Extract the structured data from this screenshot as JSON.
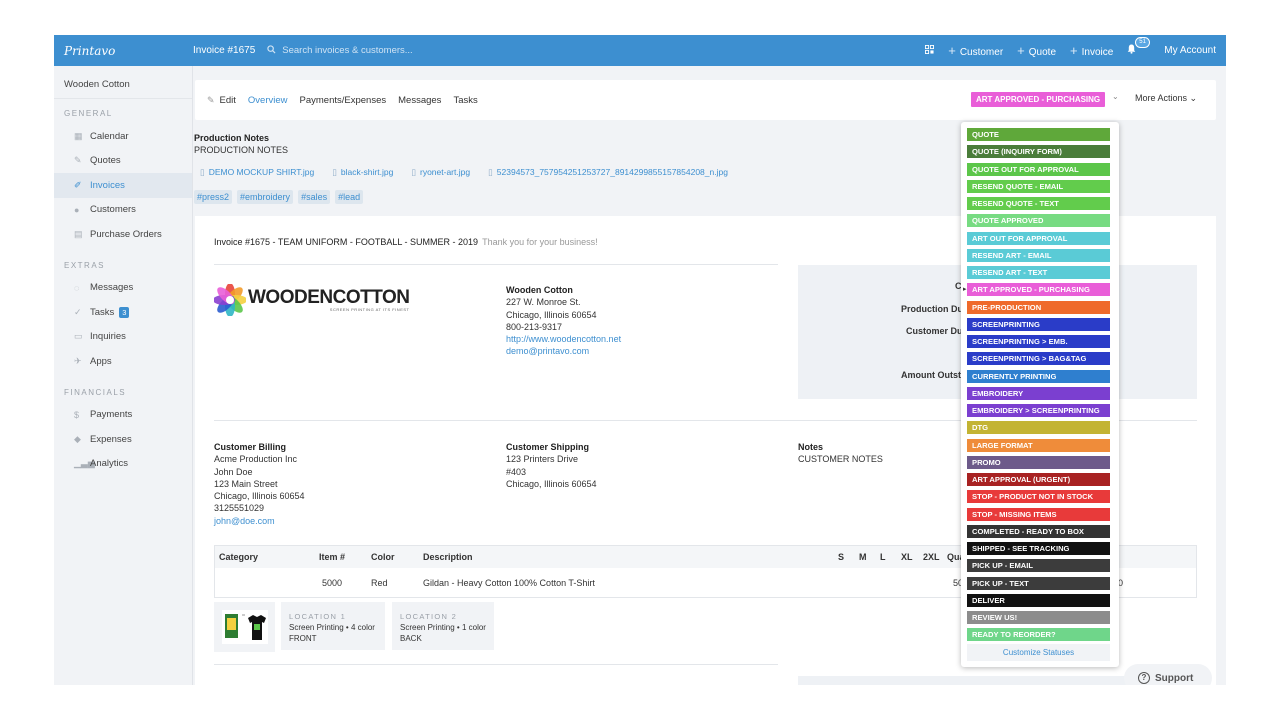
{
  "topbar": {
    "logo": "Printavo",
    "invoice_title": "Invoice #1675",
    "search_placeholder": "Search invoices & customers...",
    "customer_label": "Customer",
    "quote_label": "Quote",
    "invoice_label": "Invoice",
    "notification_count": "51",
    "account_label": "My Account"
  },
  "sidebar": {
    "company": "Wooden Cotton",
    "sections": [
      {
        "title": "GENERAL",
        "items": [
          {
            "label": "Calendar",
            "icon": "calendar-icon"
          },
          {
            "label": "Quotes",
            "icon": "pencil-icon"
          },
          {
            "label": "Invoices",
            "icon": "edit-icon",
            "active": true
          },
          {
            "label": "Customers",
            "icon": "person-icon"
          },
          {
            "label": "Purchase Orders",
            "icon": "document-icon"
          }
        ]
      },
      {
        "title": "EXTRAS",
        "items": [
          {
            "label": "Messages",
            "icon": "chat-icon"
          },
          {
            "label": "Tasks",
            "icon": "check-icon",
            "badge": "3"
          },
          {
            "label": "Inquiries",
            "icon": "inbox-icon"
          },
          {
            "label": "Apps",
            "icon": "rocket-icon"
          }
        ]
      },
      {
        "title": "FINANCIALS",
        "items": [
          {
            "label": "Payments",
            "icon": "dollar-icon"
          },
          {
            "label": "Expenses",
            "icon": "tag-icon"
          },
          {
            "label": "Analytics",
            "icon": "bar-chart-icon"
          }
        ]
      }
    ]
  },
  "tabs": {
    "edit": "Edit",
    "overview": "Overview",
    "payments": "Payments/Expenses",
    "messages": "Messages",
    "tasks": "Tasks",
    "status": "ART APPROVED - PURCHASING",
    "more_actions": "More Actions"
  },
  "production": {
    "title": "Production Notes",
    "text": "PRODUCTION NOTES",
    "files": [
      "DEMO MOCKUP SHIRT.jpg",
      "black-shirt.jpg",
      "ryonet-art.jpg",
      "52394573_757954251253727_8914299855157854208_n.jpg"
    ],
    "tags": [
      "#press2",
      "#embroidery",
      "#sales",
      "#lead"
    ]
  },
  "invoice": {
    "heading": "Invoice #1675 - TEAM UNIFORM - FOOTBALL - SUMMER - 2019",
    "thanks": "Thank you for your business!",
    "logo_name": "WOODENCOTTON",
    "logo_tagline": "SCREEN PRINTING AT ITS FINEST",
    "company": {
      "name": "Wooden Cotton",
      "street": "227 W. Monroe St.",
      "city": "Chicago, Illinois 60654",
      "phone": "800-213-9317",
      "website": "http://www.woodencotton.net",
      "email": "demo@printavo.com"
    },
    "summary_labels": {
      "c": "C",
      "production_due": "Production Du",
      "customer_due": "Customer Du",
      "amount_outstanding": "Amount Outsta"
    },
    "billing": {
      "title": "Customer Billing",
      "company": "Acme Production Inc",
      "name": "John Doe",
      "street": "123 Main Street",
      "city": "Chicago, Illinois 60654",
      "phone": "3125551029",
      "email": "john@doe.com"
    },
    "shipping": {
      "title": "Customer Shipping",
      "street": "123 Printers Drive",
      "unit": "#403",
      "city": "Chicago, Illinois 60654"
    },
    "notes": {
      "title": "Notes",
      "text": "CUSTOMER NOTES"
    },
    "table": {
      "headers": {
        "category": "Category",
        "item": "Item #",
        "color": "Color",
        "description": "Description",
        "s": "S",
        "m": "M",
        "l": "L",
        "xl": "XL",
        "xxl": "2XL",
        "qty": "Qua"
      },
      "row": {
        "category": "",
        "item": "5000",
        "color": "Red",
        "description": "Gildan - Heavy Cotton 100% Cotton T-Shirt",
        "qty": "50",
        "total": "50"
      }
    },
    "locations": [
      {
        "title": "LOCATION 1",
        "detail": "Screen Printing • 4 color",
        "side": "FRONT"
      },
      {
        "title": "LOCATION 2",
        "detail": "Screen Printing • 1 color",
        "side": "BACK"
      }
    ]
  },
  "status_dropdown": {
    "items": [
      {
        "label": "QUOTE",
        "color": "#5fa83a"
      },
      {
        "label": "QUOTE (INQUIRY FORM)",
        "color": "#4a7d3a"
      },
      {
        "label": "QUOTE OUT FOR APPROVAL",
        "color": "#5cc64a"
      },
      {
        "label": "RESEND QUOTE - EMAIL",
        "color": "#62cc4c"
      },
      {
        "label": "RESEND QUOTE - TEXT",
        "color": "#62cc4c"
      },
      {
        "label": "QUOTE APPROVED",
        "color": "#77db82"
      },
      {
        "label": "ART OUT FOR APPROVAL",
        "color": "#5acbd6"
      },
      {
        "label": "RESEND ART - EMAIL",
        "color": "#5acbd6"
      },
      {
        "label": "RESEND ART - TEXT",
        "color": "#5acbd6"
      },
      {
        "label": "ART APPROVED - PURCHASING",
        "color": "#e95ed8",
        "selected": true
      },
      {
        "label": "PRE-PRODUCTION",
        "color": "#ef6a2b"
      },
      {
        "label": "SCREENPRINTING",
        "color": "#2a3cc8"
      },
      {
        "label": "SCREENPRINTING > EMB.",
        "color": "#2a3cc8"
      },
      {
        "label": "SCREENPRINTING > BAG&TAG",
        "color": "#2a3cc8"
      },
      {
        "label": "CURRENTLY PRINTING",
        "color": "#2f7fcf"
      },
      {
        "label": "EMBROIDERY",
        "color": "#7b3fd0"
      },
      {
        "label": "EMBROIDERY > SCREENPRINTING",
        "color": "#7b3fd0"
      },
      {
        "label": "DTG",
        "color": "#c3b434"
      },
      {
        "label": "LARGE FORMAT",
        "color": "#ef8c3a"
      },
      {
        "label": "PROMO",
        "color": "#6d5a8a"
      },
      {
        "label": "ART APPROVAL (URGENT)",
        "color": "#a82222"
      },
      {
        "label": "STOP - PRODUCT NOT IN STOCK",
        "color": "#e83a3a"
      },
      {
        "label": "STOP - MISSING ITEMS",
        "color": "#e83a3a"
      },
      {
        "label": "COMPLETED - READY TO BOX",
        "color": "#333333"
      },
      {
        "label": "SHIPPED - SEE TRACKING",
        "color": "#111111"
      },
      {
        "label": "PICK UP - EMAIL",
        "color": "#3c3c3c"
      },
      {
        "label": "PICK UP - TEXT",
        "color": "#3c3c3c"
      },
      {
        "label": "DELIVER",
        "color": "#111111"
      },
      {
        "label": "REVIEW US!",
        "color": "#8c8c8c"
      },
      {
        "label": "READY TO REORDER?",
        "color": "#6fd68a"
      }
    ],
    "customize": "Customize Statuses"
  },
  "support": {
    "label": "Support"
  }
}
